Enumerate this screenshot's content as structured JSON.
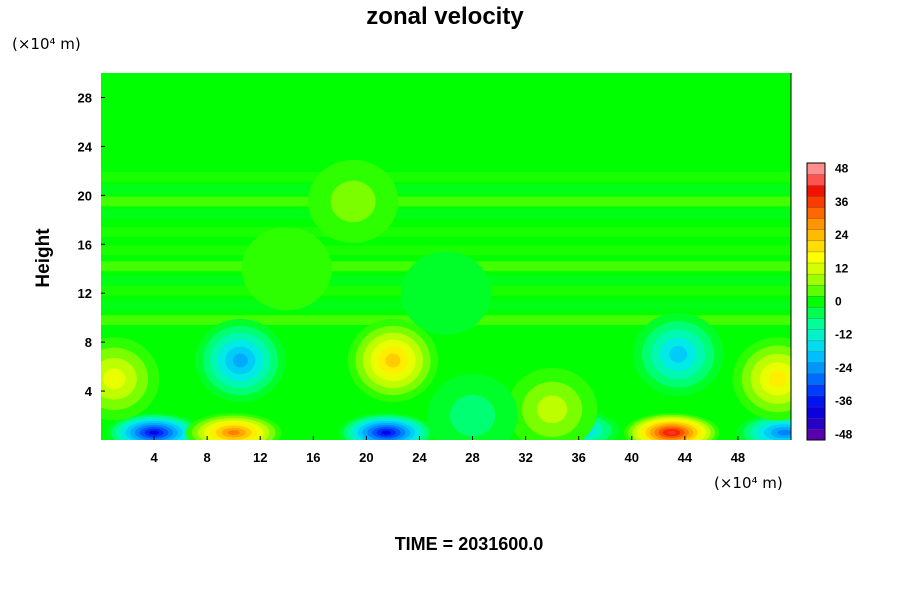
{
  "chart_data": {
    "type": "heatmap",
    "title": "zonal velocity",
    "ylabel": "Height",
    "xlabel": "",
    "x_unit": "(×10⁴ m)",
    "y_unit": "(×10⁴ m)",
    "xlim": [
      0,
      52
    ],
    "ylim": [
      0,
      30
    ],
    "x_ticks": [
      "4",
      "8",
      "12",
      "16",
      "20",
      "24",
      "28",
      "32",
      "36",
      "40",
      "44",
      "48"
    ],
    "y_ticks": [
      "4",
      "8",
      "12",
      "16",
      "20",
      "24",
      "28"
    ],
    "x_tick_values": [
      4,
      8,
      12,
      16,
      20,
      24,
      28,
      32,
      36,
      40,
      44,
      48
    ],
    "y_tick_values": [
      4,
      8,
      12,
      16,
      20,
      24,
      28
    ],
    "colorbar": {
      "min": -50,
      "max": 50,
      "step": 4,
      "tick_labels": [
        "48",
        "36",
        "24",
        "12",
        "0",
        "-12",
        "-24",
        "-36",
        "-48"
      ],
      "tick_values": [
        48,
        36,
        24,
        12,
        0,
        -12,
        -24,
        -36,
        -48
      ]
    },
    "features": [
      {
        "x": 4,
        "y": 0.6,
        "value": -40
      },
      {
        "x": 10,
        "y": 0.6,
        "value": 32
      },
      {
        "x": 21.5,
        "y": 0.6,
        "value": -42
      },
      {
        "x": 35.5,
        "y": 0.8,
        "value": -26
      },
      {
        "x": 43,
        "y": 0.6,
        "value": 44
      },
      {
        "x": 51.5,
        "y": 0.6,
        "value": -30
      },
      {
        "x": 10.5,
        "y": 6.5,
        "value": -24
      },
      {
        "x": 22,
        "y": 6.5,
        "value": 24
      },
      {
        "x": 1,
        "y": 5,
        "value": 18
      },
      {
        "x": 43.5,
        "y": 7,
        "value": -20
      },
      {
        "x": 51,
        "y": 5,
        "value": 20
      },
      {
        "x": 34,
        "y": 2.5,
        "value": 14
      },
      {
        "x": 28,
        "y": 2,
        "value": -8
      },
      {
        "x": 19,
        "y": 19.5,
        "value": 10
      },
      {
        "x": 14,
        "y": 14,
        "value": 5
      },
      {
        "x": 26,
        "y": 12,
        "value": -5
      }
    ],
    "footer": "TIME = 2031600.0"
  }
}
